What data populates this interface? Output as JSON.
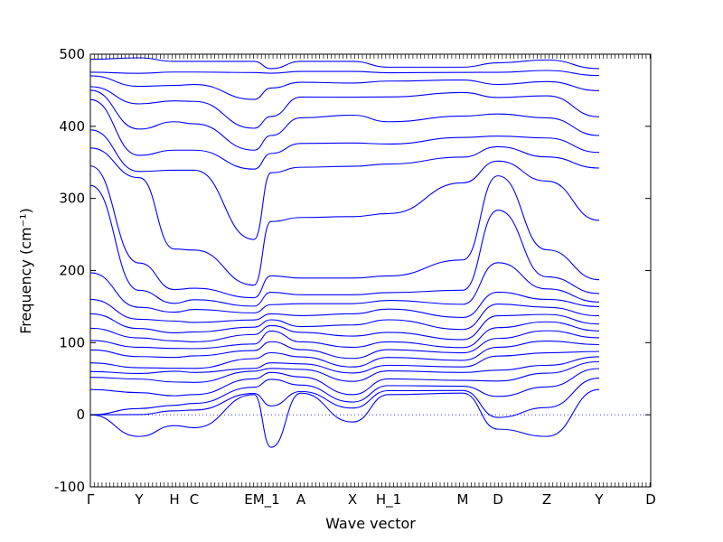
{
  "chart_data": {
    "type": "line",
    "xlabel": "Wave vector",
    "ylabel": "Frequency (cm⁻¹)",
    "ylim": [
      -100,
      500
    ],
    "yticks": [
      -100,
      0,
      100,
      200,
      300,
      400,
      500
    ],
    "x_path": [
      "Γ",
      "Y",
      "H",
      "C",
      "E",
      "M_1",
      "A",
      "X",
      "H_1",
      "M",
      "D",
      "Z",
      "Y",
      "D"
    ],
    "x_tick_labels": [
      "Γ",
      "Y",
      "H",
      "C",
      "EM_1",
      "A",
      "X",
      "H_1",
      "M",
      "D",
      "Z",
      "Y",
      "D"
    ],
    "zero_line": true,
    "line_color": "#0000ff",
    "bands_at_special_points": [
      {
        "point": "Γ",
        "frequencies": [
          0,
          0,
          0,
          35,
          52,
          60,
          72,
          90,
          103,
          120,
          140,
          160,
          197,
          318,
          345,
          370,
          395,
          437,
          450,
          455,
          470,
          475,
          493
        ]
      },
      {
        "point": "Y",
        "frequencies": [
          -30,
          5,
          10,
          45,
          55,
          62,
          80,
          95,
          110,
          125,
          140,
          165,
          198,
          335,
          338,
          370,
          418,
          450,
          470,
          495
        ]
      },
      {
        "point": "H",
        "frequencies": [
          -15,
          10,
          15,
          40,
          60,
          65,
          85,
          98,
          110,
          130,
          145,
          160,
          190,
          336,
          370,
          420,
          448,
          472,
          490
        ]
      },
      {
        "point": "C",
        "frequencies": [
          -18,
          12,
          18,
          40,
          58,
          65,
          88,
          95,
          112,
          128,
          150,
          165,
          188,
          336,
          370,
          416,
          450,
          472,
          490
        ]
      },
      {
        "point": "EM_1",
        "frequencies": [
          28,
          30,
          45,
          60,
          65,
          85,
          95,
          112,
          125,
          138,
          150,
          165,
          190,
          336,
          370,
          410,
          470,
          490
        ]
      },
      {
        "point": "A",
        "frequencies": [
          -45,
          45,
          60,
          68,
          90,
          115,
          127,
          140,
          160,
          196,
          328,
          370,
          408,
          470,
          480
        ]
      },
      {
        "point": "X",
        "frequencies": [
          30,
          33,
          48,
          62,
          72,
          85,
          98,
          115,
          125,
          150,
          165,
          195,
          328,
          370,
          416,
          452,
          472,
          490
        ]
      },
      {
        "point": "H_1",
        "frequencies": [
          -10,
          15,
          20,
          45,
          60,
          70,
          90,
          110,
          130,
          150,
          165,
          195,
          330,
          370,
          420,
          450,
          472,
          490
        ]
      },
      {
        "point": "M",
        "frequencies": [
          28,
          35,
          45,
          60,
          70,
          85,
          98,
          115,
          138,
          155,
          168,
          198,
          335,
          370,
          410,
          455,
          472,
          482
        ]
      },
      {
        "point": "D",
        "frequencies": [
          30,
          35,
          45,
          60,
          70,
          85,
          95,
          112,
          135,
          160,
          188,
          335,
          370,
          410,
          455,
          472,
          482
        ]
      },
      {
        "point": "Z",
        "frequencies": [
          -20,
          0,
          40,
          55,
          80,
          95,
          110,
          130,
          150,
          170,
          220,
          320,
          345,
          370,
          388,
          428,
          450,
          472,
          488
        ]
      },
      {
        "point": "Y",
        "frequencies": [
          -30,
          25,
          55,
          70,
          95,
          115,
          132,
          145,
          160,
          180,
          205,
          336,
          370,
          408,
          450,
          472,
          492
        ]
      },
      {
        "point": "D",
        "frequencies": [
          35,
          60,
          75,
          85,
          100,
          115,
          130,
          150,
          160,
          190,
          336,
          370,
          408,
          465,
          480
        ]
      }
    ]
  }
}
